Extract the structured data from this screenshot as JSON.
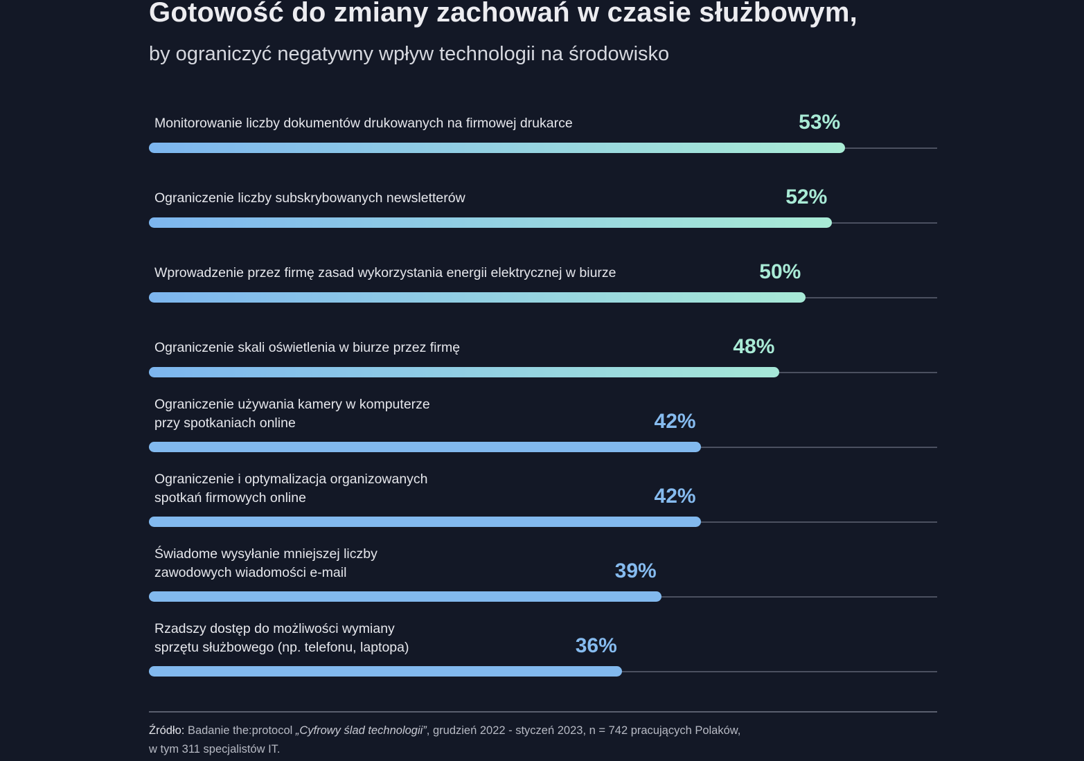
{
  "chart_data": {
    "type": "bar",
    "orientation": "horizontal",
    "title": "Gotowość do zmiany zachowań w czasie służbowym,",
    "subtitle": "by ograniczyć negatywny wpływ technologii na środowisko",
    "xlabel": "",
    "ylabel": "",
    "unit": "%",
    "xlim": [
      0,
      60
    ],
    "grid": false,
    "legend": "none",
    "categories": [
      "Monitorowanie liczby dokumentów drukowanych na firmowej drukarce",
      "Ograniczenie liczby subskrybowanych newsletterów",
      "Wprowadzenie przez firmę zasad wykorzystania energii elektrycznej w biurze",
      "Ograniczenie skali oświetlenia w biurze przez firmę",
      "Ograniczenie używania kamery w komputerze\nprzy spotkaniach online",
      "Ograniczenie i optymalizacja organizowanych\nspotkań firmowych online",
      "Świadome wysyłanie mniejszej liczby\nzawodowych wiadomości e-mail",
      "Rzadszy dostęp do możliwości wymiany\nsprzętu służbowego (np. telefonu, laptopa)"
    ],
    "values": [
      53,
      52,
      50,
      48,
      42,
      42,
      39,
      36
    ],
    "value_labels": [
      "53%",
      "52%",
      "50%",
      "48%",
      "42%",
      "42%",
      "39%",
      "36%"
    ],
    "colors": {
      "bar_start": "#7db6ef",
      "bar_end_high": "#aaecd5",
      "bar_plain": "#82b9ee",
      "value_high": "#a9ebd6",
      "value_low": "#86bbef",
      "track": "#4b5060",
      "background": "#131826"
    }
  },
  "source": {
    "label": "Źródło:",
    "text_before": " Badanie the:protocol ",
    "title_italic": "„Cyfrowy ślad technologii”",
    "text_after": ", grudzień 2022 - styczeń 2023, n = 742 pracujących Polaków,",
    "line2": "w tym 311 specjalistów IT."
  }
}
